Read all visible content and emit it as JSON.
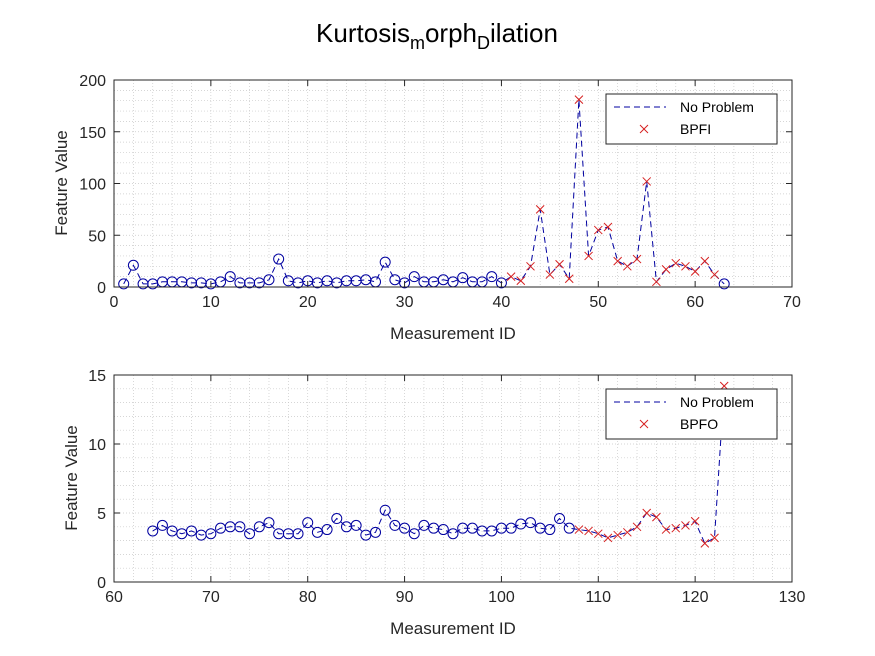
{
  "figure": {
    "title_main": "Kurtosis",
    "title_sub1": "m",
    "title_mid": "orph",
    "title_sub2": "D",
    "title_end": "ilation"
  },
  "colors": {
    "line": "#0000a0",
    "circle": "#0000a0",
    "cross": "#d62020"
  },
  "chart_data": [
    {
      "type": "line",
      "xlabel": "Measurement ID",
      "ylabel": "Feature Value",
      "xlim": [
        0,
        70
      ],
      "ylim": [
        0,
        200
      ],
      "xticks": [
        "0",
        "10",
        "20",
        "30",
        "40",
        "50",
        "60",
        "70"
      ],
      "yticks": [
        "0",
        "50",
        "100",
        "150",
        "200"
      ],
      "grid": "on (major and minor, dotted)",
      "legend_position": "top-right",
      "legend": [
        "No Problem",
        "BPFI"
      ],
      "series": [
        {
          "name": "No Problem",
          "marker": "circle",
          "x": [
            1,
            2,
            3,
            4,
            5,
            6,
            7,
            8,
            9,
            10,
            11,
            12,
            13,
            14,
            15,
            16,
            17,
            18,
            19,
            20,
            21,
            22,
            23,
            24,
            25,
            26,
            27,
            28,
            29,
            30,
            31,
            32,
            33,
            34,
            35,
            36,
            37,
            38,
            39,
            40
          ],
          "y": [
            3,
            21,
            3,
            3,
            5,
            5,
            5,
            4,
            4,
            3,
            5,
            10,
            4,
            4,
            4,
            7,
            27,
            6,
            4,
            6,
            4,
            6,
            4,
            6,
            6,
            7,
            5,
            24,
            7,
            4,
            10,
            5,
            5,
            7,
            5,
            9,
            5,
            5,
            10,
            4
          ]
        },
        {
          "name": "BPFI",
          "marker": "cross",
          "x": [
            41,
            42,
            43,
            44,
            45,
            46,
            47,
            48,
            49,
            50,
            51,
            52,
            53,
            54,
            55,
            56,
            57,
            58,
            59,
            60,
            61,
            62
          ],
          "y": [
            10,
            6,
            20,
            75,
            12,
            22,
            8,
            181,
            30,
            55,
            58,
            25,
            20,
            27,
            102,
            5,
            17,
            23,
            20,
            15,
            25,
            12
          ]
        }
      ],
      "trailing_circle": {
        "x": 63,
        "y": 3
      }
    },
    {
      "type": "line",
      "xlabel": "Measurement ID",
      "ylabel": "Feature Value",
      "xlim": [
        60,
        130
      ],
      "ylim": [
        0,
        15
      ],
      "xticks": [
        "60",
        "70",
        "80",
        "90",
        "100",
        "110",
        "120",
        "130"
      ],
      "yticks": [
        "0",
        "5",
        "10",
        "15"
      ],
      "grid": "on (major and minor, dotted)",
      "legend_position": "top-right",
      "legend": [
        "No Problem",
        "BPFO"
      ],
      "series": [
        {
          "name": "No Problem",
          "marker": "circle",
          "x": [
            64,
            65,
            66,
            67,
            68,
            69,
            70,
            71,
            72,
            73,
            74,
            75,
            76,
            77,
            78,
            79,
            80,
            81,
            82,
            83,
            84,
            85,
            86,
            87,
            88,
            89,
            90,
            91,
            92,
            93,
            94,
            95,
            96,
            97,
            98,
            99,
            100,
            101,
            102,
            103,
            104,
            105,
            106,
            107
          ],
          "y": [
            3.7,
            4.1,
            3.7,
            3.5,
            3.7,
            3.4,
            3.5,
            3.9,
            4.0,
            4.0,
            3.5,
            4.0,
            4.3,
            3.5,
            3.5,
            3.5,
            4.3,
            3.6,
            3.8,
            4.6,
            4.0,
            4.1,
            3.4,
            3.6,
            5.2,
            4.1,
            3.9,
            3.5,
            4.1,
            3.9,
            3.8,
            3.5,
            3.9,
            3.9,
            3.7,
            3.7,
            3.9,
            3.9,
            4.2,
            4.3,
            3.9,
            3.8,
            4.6,
            3.9
          ]
        },
        {
          "name": "BPFO",
          "marker": "cross",
          "x": [
            108,
            109,
            110,
            111,
            112,
            113,
            114,
            115,
            116,
            117,
            118,
            119,
            120,
            121,
            122,
            123
          ],
          "y": [
            3.8,
            3.7,
            3.5,
            3.2,
            3.4,
            3.6,
            4.0,
            5.0,
            4.7,
            3.8,
            3.9,
            4.1,
            4.4,
            2.8,
            3.2,
            14.2
          ]
        }
      ]
    }
  ]
}
